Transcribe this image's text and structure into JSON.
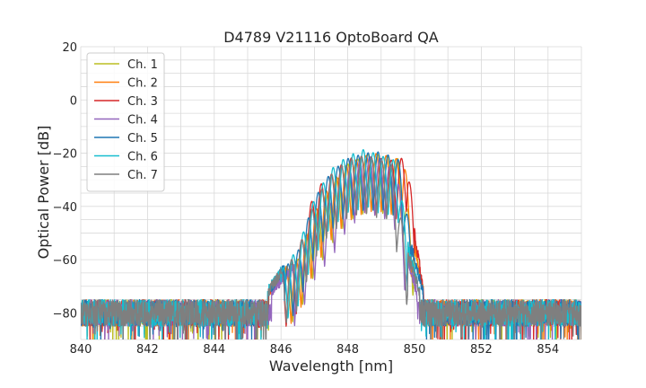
{
  "chart_data": {
    "type": "line",
    "title": "D4789 V21116 OptoBoard QA",
    "xlabel": "Wavelength [nm]",
    "ylabel": "Optical Power [dB]",
    "xlim": [
      840,
      855
    ],
    "ylim": [
      -90,
      20
    ],
    "xticks": [
      840,
      842,
      844,
      846,
      848,
      850,
      852,
      854
    ],
    "yticks": [
      20,
      0,
      -20,
      -40,
      -60,
      -80
    ],
    "xtick_labels": [
      "840",
      "842",
      "844",
      "846",
      "848",
      "850",
      "852",
      "854"
    ],
    "ytick_labels": [
      "20",
      "0",
      "−20",
      "−40",
      "−60",
      "−80"
    ],
    "grid": true,
    "legend_position": "top-left",
    "noise_floor_db": -80,
    "series": [
      {
        "name": "Ch. 1",
        "color": "#bcbd22",
        "peak_wavelength_nm": 848.7,
        "peak_power_db": -19.5,
        "band_start_nm": 846.2,
        "band_end_nm": 850.0,
        "points": [
          [
            840,
            -80
          ],
          [
            845.5,
            -74
          ],
          [
            846.0,
            -66
          ],
          [
            846.5,
            -60
          ],
          [
            847.0,
            -44
          ],
          [
            847.5,
            -33
          ],
          [
            848.0,
            -24
          ],
          [
            848.5,
            -21
          ],
          [
            848.7,
            -19.5
          ],
          [
            849.0,
            -21
          ],
          [
            849.5,
            -22
          ],
          [
            850.0,
            -55
          ],
          [
            850.3,
            -74
          ],
          [
            855,
            -80
          ]
        ]
      },
      {
        "name": "Ch. 2",
        "color": "#ff7f0e",
        "peak_wavelength_nm": 848.8,
        "peak_power_db": -20,
        "band_start_nm": 846.2,
        "band_end_nm": 850.0,
        "points": [
          [
            840,
            -80
          ],
          [
            845.5,
            -74
          ],
          [
            846.0,
            -66
          ],
          [
            846.5,
            -60
          ],
          [
            847.0,
            -42
          ],
          [
            847.5,
            -31
          ],
          [
            848.0,
            -24
          ],
          [
            848.5,
            -21
          ],
          [
            848.8,
            -20
          ],
          [
            849.2,
            -21
          ],
          [
            849.7,
            -23
          ],
          [
            850.0,
            -55
          ],
          [
            850.3,
            -74
          ],
          [
            855,
            -80
          ]
        ]
      },
      {
        "name": "Ch. 3",
        "color": "#d62728",
        "peak_wavelength_nm": 849.8,
        "peak_power_db": -20,
        "band_start_nm": 846.1,
        "band_end_nm": 850.0,
        "points": [
          [
            840,
            -80
          ],
          [
            845.5,
            -74
          ],
          [
            846.0,
            -66
          ],
          [
            846.5,
            -58
          ],
          [
            847.0,
            -34
          ],
          [
            847.5,
            -28
          ],
          [
            848.0,
            -22
          ],
          [
            848.5,
            -21
          ],
          [
            849.0,
            -22
          ],
          [
            849.5,
            -23
          ],
          [
            849.8,
            -20
          ],
          [
            850.0,
            -50
          ],
          [
            850.3,
            -74
          ],
          [
            855,
            -80
          ]
        ]
      },
      {
        "name": "Ch. 4",
        "color": "#9467bd",
        "peak_wavelength_nm": 848.5,
        "peak_power_db": -21,
        "band_start_nm": 846.4,
        "band_end_nm": 849.8,
        "points": [
          [
            840,
            -80
          ],
          [
            845.5,
            -75
          ],
          [
            846.0,
            -68
          ],
          [
            846.5,
            -62
          ],
          [
            847.0,
            -46
          ],
          [
            847.5,
            -38
          ],
          [
            848.0,
            -27
          ],
          [
            848.5,
            -21
          ],
          [
            849.0,
            -22
          ],
          [
            849.5,
            -28
          ],
          [
            849.8,
            -60
          ],
          [
            850.2,
            -78
          ],
          [
            855,
            -80
          ]
        ]
      },
      {
        "name": "Ch. 5",
        "color": "#1f77b4",
        "peak_wavelength_nm": 848.9,
        "peak_power_db": -19.5,
        "band_start_nm": 846.1,
        "band_end_nm": 849.9,
        "points": [
          [
            840,
            -80
          ],
          [
            845.5,
            -74
          ],
          [
            846.0,
            -65
          ],
          [
            846.5,
            -57
          ],
          [
            847.0,
            -37
          ],
          [
            847.5,
            -27
          ],
          [
            848.0,
            -22
          ],
          [
            848.5,
            -20
          ],
          [
            848.9,
            -19.5
          ],
          [
            849.3,
            -21
          ],
          [
            849.6,
            -23
          ],
          [
            849.9,
            -55
          ],
          [
            850.3,
            -74
          ],
          [
            855,
            -80
          ]
        ]
      },
      {
        "name": "Ch. 6",
        "color": "#17becf",
        "peak_wavelength_nm": 848.5,
        "peak_power_db": -18.5,
        "band_start_nm": 846.0,
        "band_end_nm": 849.8,
        "points": [
          [
            840,
            -80
          ],
          [
            845.5,
            -74
          ],
          [
            846.0,
            -64
          ],
          [
            846.5,
            -56
          ],
          [
            847.0,
            -37
          ],
          [
            847.5,
            -26
          ],
          [
            848.0,
            -21
          ],
          [
            848.5,
            -18.5
          ],
          [
            849.0,
            -21
          ],
          [
            849.5,
            -23
          ],
          [
            849.8,
            -55
          ],
          [
            850.2,
            -74
          ],
          [
            855,
            -80
          ]
        ]
      },
      {
        "name": "Ch. 7",
        "color": "#7f7f7f",
        "peak_wavelength_nm": 848.3,
        "peak_power_db": -21,
        "band_start_nm": 846.0,
        "band_end_nm": 849.8,
        "points": [
          [
            840,
            -80
          ],
          [
            845.5,
            -74
          ],
          [
            846.0,
            -65
          ],
          [
            846.5,
            -57
          ],
          [
            847.0,
            -38
          ],
          [
            847.5,
            -28
          ],
          [
            848.0,
            -23
          ],
          [
            848.3,
            -21
          ],
          [
            848.8,
            -22
          ],
          [
            849.3,
            -24
          ],
          [
            849.8,
            -58
          ],
          [
            850.2,
            -74
          ],
          [
            855,
            -80
          ]
        ]
      }
    ]
  }
}
